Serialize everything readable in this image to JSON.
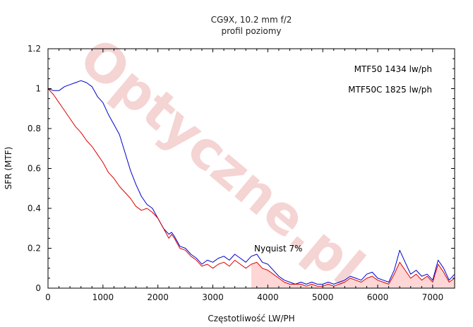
{
  "chart_data": {
    "type": "line",
    "title": "CG9X, 10.2 mm f/2",
    "subtitle": "profil poziomy",
    "xlabel": "Częstotliwość LW/PH",
    "ylabel": "SFR (MTF)",
    "xlim": [
      0,
      7400
    ],
    "ylim": [
      0,
      1.2
    ],
    "xticks": [
      "0",
      "1000",
      "2000",
      "3000",
      "4000",
      "5000",
      "6000",
      "7000"
    ],
    "yticks": [
      "0",
      "0.2",
      "0.4",
      "0.6",
      "0.8",
      "1",
      "1.2"
    ],
    "grid": false,
    "annotations": {
      "mtf50": "MTF50 1434 lw/ph",
      "mtf50c": "MTF50C 1825 lw/ph",
      "nyquist": "Nyquist 7%"
    },
    "nyquist_region_start": 3700,
    "watermark": "Optyczne.pl",
    "colors": {
      "series_blue": "#0000cc",
      "series_red": "#dd0000",
      "shade": "#ffd6d6"
    },
    "series": [
      {
        "color": "#0000cc",
        "x": [
          0,
          100,
          200,
          300,
          400,
          500,
          600,
          700,
          800,
          900,
          1000,
          1100,
          1200,
          1300,
          1400,
          1500,
          1600,
          1700,
          1800,
          1900,
          2000,
          2100,
          2200,
          2250,
          2300,
          2400,
          2500,
          2600,
          2700,
          2800,
          2900,
          3000,
          3100,
          3200,
          3300,
          3400,
          3500,
          3600,
          3700,
          3800,
          3900,
          4000,
          4100,
          4200,
          4300,
          4400,
          4500,
          4600,
          4700,
          4800,
          4900,
          5000,
          5100,
          5200,
          5300,
          5400,
          5500,
          5600,
          5700,
          5800,
          5900,
          6000,
          6100,
          6200,
          6300,
          6400,
          6500,
          6600,
          6700,
          6800,
          6900,
          7000,
          7100,
          7200,
          7300,
          7400
        ],
        "y": [
          1.0,
          0.99,
          0.99,
          1.01,
          1.02,
          1.03,
          1.04,
          1.03,
          1.01,
          0.96,
          0.93,
          0.87,
          0.82,
          0.77,
          0.68,
          0.59,
          0.52,
          0.46,
          0.42,
          0.4,
          0.35,
          0.3,
          0.27,
          0.28,
          0.26,
          0.21,
          0.2,
          0.17,
          0.15,
          0.12,
          0.14,
          0.13,
          0.15,
          0.16,
          0.14,
          0.17,
          0.15,
          0.13,
          0.16,
          0.17,
          0.13,
          0.12,
          0.09,
          0.06,
          0.04,
          0.03,
          0.02,
          0.03,
          0.02,
          0.03,
          0.02,
          0.02,
          0.03,
          0.02,
          0.03,
          0.04,
          0.06,
          0.05,
          0.04,
          0.07,
          0.08,
          0.05,
          0.04,
          0.03,
          0.09,
          0.19,
          0.13,
          0.07,
          0.09,
          0.06,
          0.07,
          0.04,
          0.14,
          0.1,
          0.04,
          0.07
        ]
      },
      {
        "color": "#dd0000",
        "x": [
          0,
          100,
          200,
          300,
          400,
          500,
          600,
          700,
          800,
          900,
          1000,
          1100,
          1200,
          1300,
          1400,
          1500,
          1600,
          1700,
          1800,
          1900,
          2000,
          2100,
          2200,
          2250,
          2300,
          2400,
          2500,
          2600,
          2700,
          2800,
          2900,
          3000,
          3100,
          3200,
          3300,
          3400,
          3500,
          3600,
          3700,
          3800,
          3900,
          4000,
          4100,
          4200,
          4300,
          4400,
          4500,
          4600,
          4700,
          4800,
          4900,
          5000,
          5100,
          5200,
          5300,
          5400,
          5500,
          5600,
          5700,
          5800,
          5900,
          6000,
          6100,
          6200,
          6300,
          6400,
          6500,
          6600,
          6700,
          6800,
          6900,
          7000,
          7100,
          7200,
          7300,
          7400
        ],
        "y": [
          1.0,
          0.97,
          0.93,
          0.89,
          0.85,
          0.81,
          0.78,
          0.74,
          0.71,
          0.67,
          0.63,
          0.58,
          0.55,
          0.51,
          0.48,
          0.45,
          0.41,
          0.39,
          0.4,
          0.38,
          0.35,
          0.3,
          0.25,
          0.27,
          0.25,
          0.2,
          0.19,
          0.16,
          0.14,
          0.11,
          0.12,
          0.1,
          0.12,
          0.13,
          0.11,
          0.14,
          0.12,
          0.1,
          0.12,
          0.13,
          0.1,
          0.09,
          0.07,
          0.05,
          0.03,
          0.02,
          0.02,
          0.02,
          0.01,
          0.02,
          0.01,
          0.01,
          0.02,
          0.01,
          0.02,
          0.03,
          0.05,
          0.04,
          0.03,
          0.05,
          0.06,
          0.04,
          0.03,
          0.02,
          0.07,
          0.13,
          0.09,
          0.05,
          0.07,
          0.04,
          0.06,
          0.03,
          0.12,
          0.08,
          0.03,
          0.05
        ]
      }
    ]
  }
}
